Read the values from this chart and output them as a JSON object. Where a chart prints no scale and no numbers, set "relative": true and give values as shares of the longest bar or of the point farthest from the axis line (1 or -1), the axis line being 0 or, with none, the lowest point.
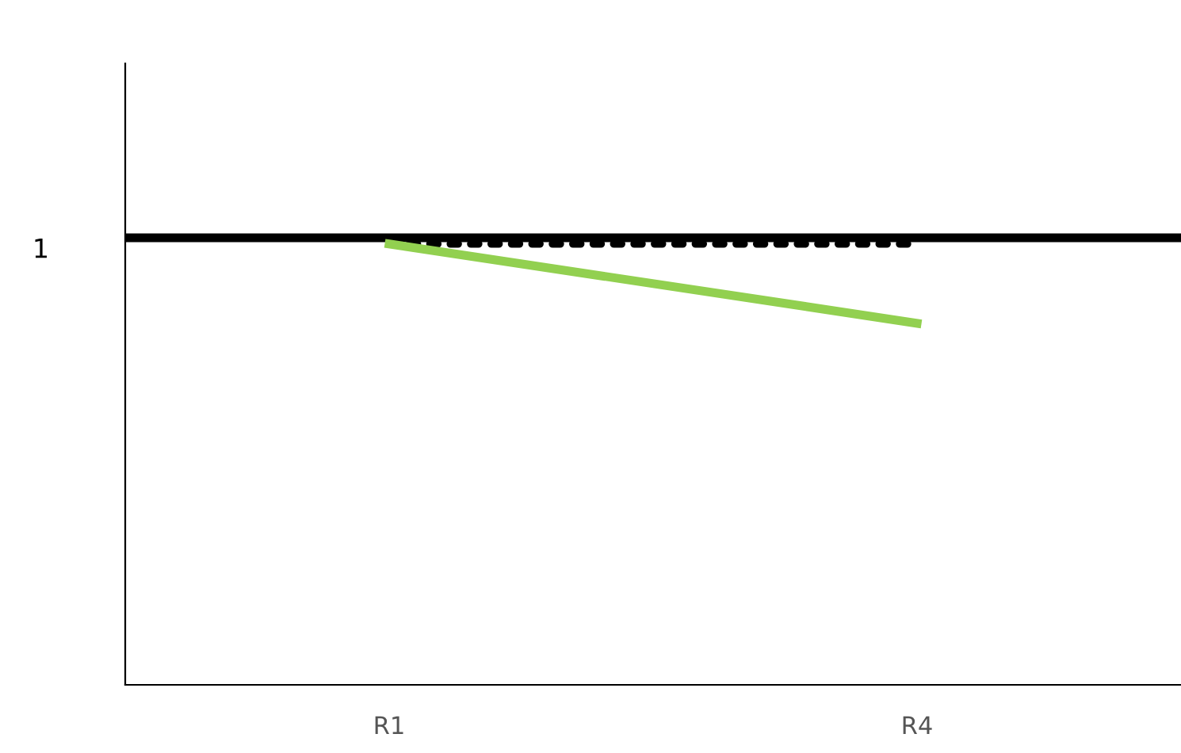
{
  "chart_data": {
    "type": "line",
    "relative": true,
    "categories": [
      null,
      "R1",
      null,
      null,
      "R4",
      null
    ],
    "series": [
      {
        "color": "#000000",
        "values": [
          null,
          1,
          null,
          null,
          1,
          null
        ],
        "line_style": "dotted"
      },
      {
        "color": "#92d050",
        "values": [
          null,
          1,
          null,
          null,
          0.82,
          null
        ],
        "line_style": "solid"
      }
    ],
    "ref_lines": [
      {
        "axis": "y",
        "value": 1.014,
        "label": "1",
        "color": "#000000"
      }
    ],
    "grid": false,
    "legend": false
  }
}
